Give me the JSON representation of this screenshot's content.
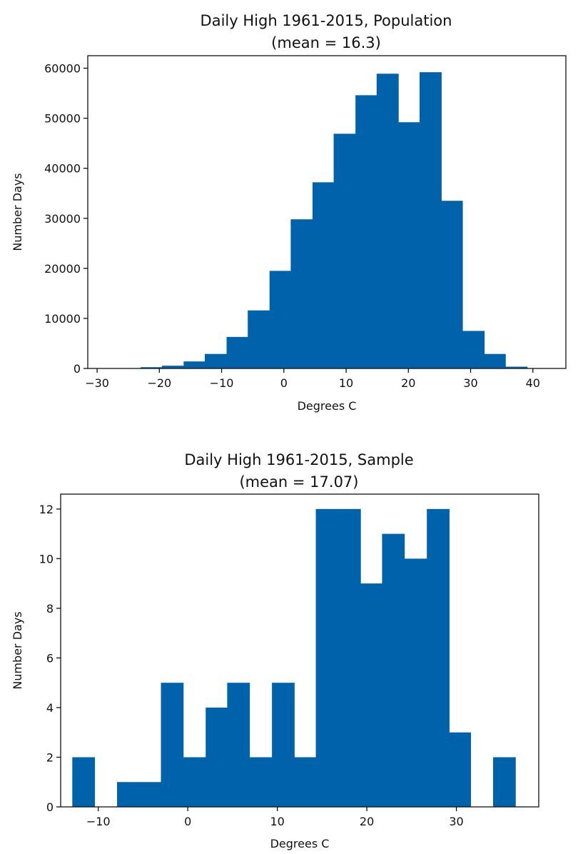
{
  "chart_data": [
    {
      "type": "bar",
      "title": "Daily High 1961-2015, Population",
      "subtitle": "(mean = 16.3)",
      "xlabel": "Degrees C",
      "ylabel": "Number Days",
      "xlim": [
        -31.5,
        45.3
      ],
      "ylim": [
        0,
        62500
      ],
      "xticks": [
        -30,
        -20,
        -10,
        0,
        10,
        20,
        30,
        40
      ],
      "xtick_labels": [
        "−30",
        "−20",
        "−10",
        "0",
        "10",
        "20",
        "30",
        "40"
      ],
      "yticks": [
        0,
        10000,
        20000,
        30000,
        40000,
        50000,
        60000
      ],
      "ytick_labels": [
        "0",
        "10000",
        "20000",
        "30000",
        "40000",
        "50000",
        "60000"
      ],
      "grid": false,
      "color": "#0062aa",
      "bins": [
        {
          "x0": -29.9,
          "x1": -26.5,
          "value": 0
        },
        {
          "x0": -26.5,
          "x1": -23.0,
          "value": 0
        },
        {
          "x0": -23.0,
          "x1": -19.6,
          "value": 250
        },
        {
          "x0": -19.6,
          "x1": -16.1,
          "value": 550
        },
        {
          "x0": -16.1,
          "x1": -12.7,
          "value": 1400
        },
        {
          "x0": -12.7,
          "x1": -9.2,
          "value": 2900
        },
        {
          "x0": -9.2,
          "x1": -5.8,
          "value": 6300
        },
        {
          "x0": -5.8,
          "x1": -2.3,
          "value": 11600
        },
        {
          "x0": -2.3,
          "x1": 1.1,
          "value": 19500
        },
        {
          "x0": 1.1,
          "x1": 4.6,
          "value": 29800
        },
        {
          "x0": 4.6,
          "x1": 8.0,
          "value": 37200
        },
        {
          "x0": 8.0,
          "x1": 11.5,
          "value": 46900
        },
        {
          "x0": 11.5,
          "x1": 14.9,
          "value": 54600
        },
        {
          "x0": 14.9,
          "x1": 18.4,
          "value": 58900
        },
        {
          "x0": 18.4,
          "x1": 21.8,
          "value": 49200
        },
        {
          "x0": 21.8,
          "x1": 25.3,
          "value": 59200
        },
        {
          "x0": 25.3,
          "x1": 28.7,
          "value": 33500
        },
        {
          "x0": 28.7,
          "x1": 32.2,
          "value": 7500
        },
        {
          "x0": 32.2,
          "x1": 35.6,
          "value": 2900
        },
        {
          "x0": 35.6,
          "x1": 39.1,
          "value": 350
        }
      ]
    },
    {
      "type": "bar",
      "title": "Daily High 1961-2015, Sample",
      "subtitle": "(mean = 17.07)",
      "xlabel": "Degrees C",
      "ylabel": "Number Days",
      "xlim": [
        -14.2,
        39.2
      ],
      "ylim": [
        0,
        12.6
      ],
      "xticks": [
        -10,
        0,
        10,
        20,
        30
      ],
      "xtick_labels": [
        "−10",
        "0",
        "10",
        "20",
        "30"
      ],
      "yticks": [
        0,
        2,
        4,
        6,
        8,
        10,
        12
      ],
      "ytick_labels": [
        "0",
        "2",
        "4",
        "6",
        "8",
        "10",
        "12"
      ],
      "grid": false,
      "color": "#0062aa",
      "bins": [
        {
          "x0": -12.9,
          "x1": -10.4,
          "value": 2
        },
        {
          "x0": -10.4,
          "x1": -7.9,
          "value": 0
        },
        {
          "x0": -7.9,
          "x1": -5.4,
          "value": 1
        },
        {
          "x0": -5.4,
          "x1": -3.0,
          "value": 1
        },
        {
          "x0": -3.0,
          "x1": -0.5,
          "value": 5
        },
        {
          "x0": -0.5,
          "x1": 2.0,
          "value": 2
        },
        {
          "x0": 2.0,
          "x1": 4.4,
          "value": 4
        },
        {
          "x0": 4.4,
          "x1": 6.9,
          "value": 5
        },
        {
          "x0": 6.9,
          "x1": 9.4,
          "value": 2
        },
        {
          "x0": 9.4,
          "x1": 11.9,
          "value": 5
        },
        {
          "x0": 11.9,
          "x1": 14.3,
          "value": 2
        },
        {
          "x0": 14.3,
          "x1": 16.8,
          "value": 12
        },
        {
          "x0": 16.8,
          "x1": 19.3,
          "value": 12
        },
        {
          "x0": 19.3,
          "x1": 21.7,
          "value": 9
        },
        {
          "x0": 21.7,
          "x1": 24.2,
          "value": 11
        },
        {
          "x0": 24.2,
          "x1": 26.7,
          "value": 10
        },
        {
          "x0": 26.7,
          "x1": 29.2,
          "value": 12
        },
        {
          "x0": 29.2,
          "x1": 31.6,
          "value": 3
        },
        {
          "x0": 31.6,
          "x1": 34.1,
          "value": 0
        },
        {
          "x0": 34.1,
          "x1": 36.6,
          "value": 2
        }
      ]
    }
  ]
}
